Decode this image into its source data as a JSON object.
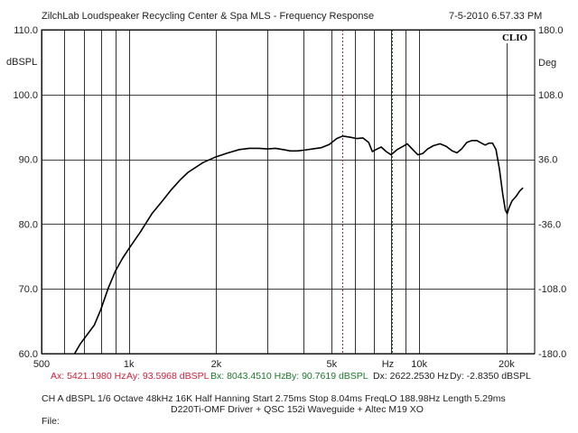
{
  "header": {
    "title": "ZilchLab Loudspeaker Recycling Center & Spa   MLS - Frequency Response",
    "timestamp": "7-5-2010 6.57.33 PM"
  },
  "logo": "CLIO",
  "axes": {
    "left_unit": "dBSPL",
    "right_unit": "Deg",
    "x_unit": "Hz"
  },
  "cursor_readout": {
    "ax": "Ax: 5421.1980 Hz",
    "ay": "Ay: 93.5968 dBSPL",
    "bx": "Bx: 8043.4510 Hz",
    "by": "By: 90.7619 dBSPL",
    "dx": "Dx: 2622.2530 Hz",
    "dy": "Dy: -2.8350 dBSPL"
  },
  "settings_line": "CH A   dBSPL   1/6 Octave   48kHz   16K   Half Hanning   Start 2.75ms   Stop 8.04ms   FreqLO 188.98Hz   Length 5.29ms",
  "description_line": "D220Ti-OMF Driver + QSC 152i Waveguide + Altec M19 XO",
  "file_label": "File:",
  "colors": {
    "curve": "#000000",
    "cursor_a": "#d0203a",
    "cursor_b": "#1a7a2a",
    "grid": "#000000"
  },
  "chart_data": {
    "type": "line",
    "x_scale": "log",
    "xlim": [
      500,
      25000
    ],
    "ylim": [
      60,
      110
    ],
    "y2lim": [
      -180,
      180
    ],
    "x_ticks": [
      {
        "value": 500,
        "label": "500"
      },
      {
        "value": 1000,
        "label": "1k"
      },
      {
        "value": 2000,
        "label": "2k"
      },
      {
        "value": 5000,
        "label": "5k"
      },
      {
        "value": 10000,
        "label": "10k"
      },
      {
        "value": 20000,
        "label": "20k"
      }
    ],
    "x_minor": [
      600,
      700,
      800,
      900,
      3000,
      4000,
      6000,
      7000,
      8000,
      9000
    ],
    "hz_label_at": 7800,
    "y_ticks": [
      {
        "value": 60,
        "label": "60.0"
      },
      {
        "value": 70,
        "label": "70.0"
      },
      {
        "value": 80,
        "label": "80.0"
      },
      {
        "value": 90,
        "label": "90.0"
      },
      {
        "value": 100,
        "label": "100.0"
      },
      {
        "value": 110,
        "label": "110.0"
      }
    ],
    "y2_ticks": [
      {
        "value": -180,
        "label": "-180.0"
      },
      {
        "value": -108,
        "label": "-108.0"
      },
      {
        "value": -36,
        "label": "-36.0"
      },
      {
        "value": 36,
        "label": "36.0"
      },
      {
        "value": 108,
        "label": "108.0"
      },
      {
        "value": 180,
        "label": "180.0"
      }
    ],
    "cursors": [
      {
        "name": "A",
        "x": 5421.198,
        "y": 93.5968
      },
      {
        "name": "B",
        "x": 8043.451,
        "y": 90.7619
      }
    ],
    "grid": true,
    "series": [
      {
        "values": [
          [
            650,
            60.0
          ],
          [
            680,
            61.5
          ],
          [
            720,
            63.0
          ],
          [
            760,
            64.4
          ],
          [
            800,
            66.8
          ],
          [
            850,
            70.2
          ],
          [
            900,
            72.8
          ],
          [
            950,
            74.7
          ],
          [
            1000,
            76.2
          ],
          [
            1100,
            78.9
          ],
          [
            1200,
            81.6
          ],
          [
            1300,
            83.5
          ],
          [
            1400,
            85.3
          ],
          [
            1500,
            86.8
          ],
          [
            1600,
            88.0
          ],
          [
            1800,
            89.5
          ],
          [
            2000,
            90.4
          ],
          [
            2200,
            91.0
          ],
          [
            2400,
            91.5
          ],
          [
            2600,
            91.7
          ],
          [
            2800,
            91.7
          ],
          [
            3000,
            91.6
          ],
          [
            3200,
            91.7
          ],
          [
            3400,
            91.5
          ],
          [
            3600,
            91.3
          ],
          [
            3800,
            91.3
          ],
          [
            4000,
            91.4
          ],
          [
            4300,
            91.6
          ],
          [
            4600,
            91.8
          ],
          [
            4900,
            92.3
          ],
          [
            5200,
            93.2
          ],
          [
            5450,
            93.6
          ],
          [
            5800,
            93.4
          ],
          [
            6100,
            93.2
          ],
          [
            6400,
            93.3
          ],
          [
            6700,
            92.6
          ],
          [
            6900,
            91.2
          ],
          [
            7100,
            91.5
          ],
          [
            7400,
            91.9
          ],
          [
            7700,
            91.2
          ],
          [
            8000,
            90.7
          ],
          [
            8400,
            91.5
          ],
          [
            8800,
            92.0
          ],
          [
            9100,
            92.4
          ],
          [
            9500,
            91.5
          ],
          [
            9900,
            90.7
          ],
          [
            10300,
            90.9
          ],
          [
            10700,
            91.6
          ],
          [
            11200,
            92.1
          ],
          [
            11800,
            92.4
          ],
          [
            12400,
            92.0
          ],
          [
            13000,
            91.3
          ],
          [
            13500,
            91.0
          ],
          [
            14000,
            91.6
          ],
          [
            14600,
            92.6
          ],
          [
            15200,
            92.9
          ],
          [
            15800,
            92.9
          ],
          [
            16400,
            92.5
          ],
          [
            16900,
            92.2
          ],
          [
            17400,
            92.5
          ],
          [
            17900,
            92.5
          ],
          [
            18400,
            91.5
          ],
          [
            18900,
            88.5
          ],
          [
            19400,
            84.7
          ],
          [
            19800,
            82.2
          ],
          [
            20100,
            81.6
          ],
          [
            20400,
            82.5
          ],
          [
            20900,
            83.6
          ],
          [
            21600,
            84.3
          ],
          [
            22200,
            85.1
          ],
          [
            22800,
            85.6
          ]
        ]
      }
    ]
  }
}
